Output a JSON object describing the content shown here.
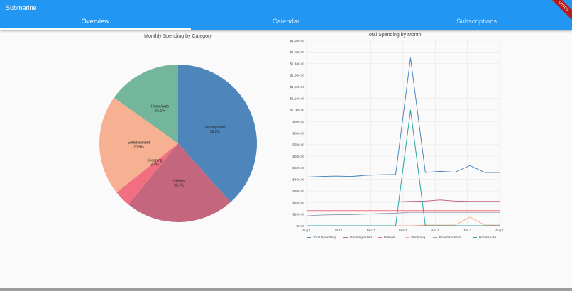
{
  "app": {
    "title": "Submarine",
    "debug_banner": "DEBUG"
  },
  "tabs": [
    {
      "label": "Overview",
      "active": true
    },
    {
      "label": "Calendar",
      "active": false
    },
    {
      "label": "Subscriptions",
      "active": false
    }
  ],
  "colors": {
    "appbar": "#2196f3",
    "background": "#fafafa"
  },
  "chart_data": [
    {
      "type": "pie",
      "title": "Monthly Spending by Category",
      "slices": [
        {
          "label": "Uncategorized",
          "pct_label": "38.3%",
          "value": 38.3,
          "color": "#4e86bb"
        },
        {
          "label": "Utilities",
          "pct_label": "22.4%",
          "value": 22.4,
          "color": "#c4677e"
        },
        {
          "label": "",
          "pct_label": "",
          "value": 3.4,
          "color": "#f26f81"
        },
        {
          "label": "Shopping",
          "pct_label": "3.4%",
          "value": 0,
          "color": "#f26f81"
        },
        {
          "label": "Entertainment",
          "pct_label": "20.5%",
          "value": 20.5,
          "color": "#f6b193"
        },
        {
          "label": "Home/Auto",
          "pct_label": "15.1%",
          "value": 15.1,
          "color": "#74b69b"
        }
      ]
    },
    {
      "type": "line",
      "title": "Total Spending by Month",
      "x_ticks": [
        "Aug 1",
        "Oct 1",
        "Dec 1",
        "Feb 1",
        "Apr 1",
        "Jun 1",
        "Aug 1"
      ],
      "ylim": [
        0,
        1600
      ],
      "y_ticks": [
        "$0.00",
        "$100.00",
        "$200.00",
        "$300.00",
        "$400.00",
        "$500.00",
        "$600.00",
        "$700.00",
        "$800.00",
        "$900.00",
        "$1,000.00",
        "$1,100.00",
        "$1,200.00",
        "$1,300.00",
        "$1,400.00",
        "$1,500.00",
        "$1,600.00"
      ],
      "grid": true,
      "legend_position": "bottom",
      "series": [
        {
          "name": "Total Spending",
          "color": "#4e86bb",
          "values": [
            420,
            425,
            428,
            425,
            435,
            440,
            442,
            1450,
            460,
            470,
            462,
            520,
            460,
            460
          ]
        },
        {
          "name": "Uncategorized",
          "color": "#c4677e",
          "values": [
            205,
            205,
            205,
            205,
            205,
            205,
            205,
            210,
            212,
            222,
            212,
            210,
            210,
            210
          ]
        },
        {
          "name": "Utilities",
          "color": "#f26f81",
          "values": [
            130,
            130,
            130,
            130,
            130,
            130,
            130,
            130,
            130,
            130,
            130,
            130,
            130,
            130
          ]
        },
        {
          "name": "Shopping",
          "color": "#f6b193",
          "values": [
            0,
            0,
            0,
            0,
            0,
            0,
            0,
            0,
            5,
            5,
            5,
            75,
            5,
            5
          ]
        },
        {
          "name": "Entertainment",
          "color": "#9aa3ac",
          "values": [
            85,
            92,
            95,
            95,
            100,
            105,
            108,
            115,
            115,
            115,
            115,
            115,
            115,
            115
          ]
        },
        {
          "name": "Home/Auto",
          "color": "#29a3a3",
          "values": [
            0,
            0,
            0,
            0,
            0,
            0,
            0,
            1000,
            0,
            0,
            0,
            0,
            0,
            0
          ]
        }
      ]
    }
  ]
}
